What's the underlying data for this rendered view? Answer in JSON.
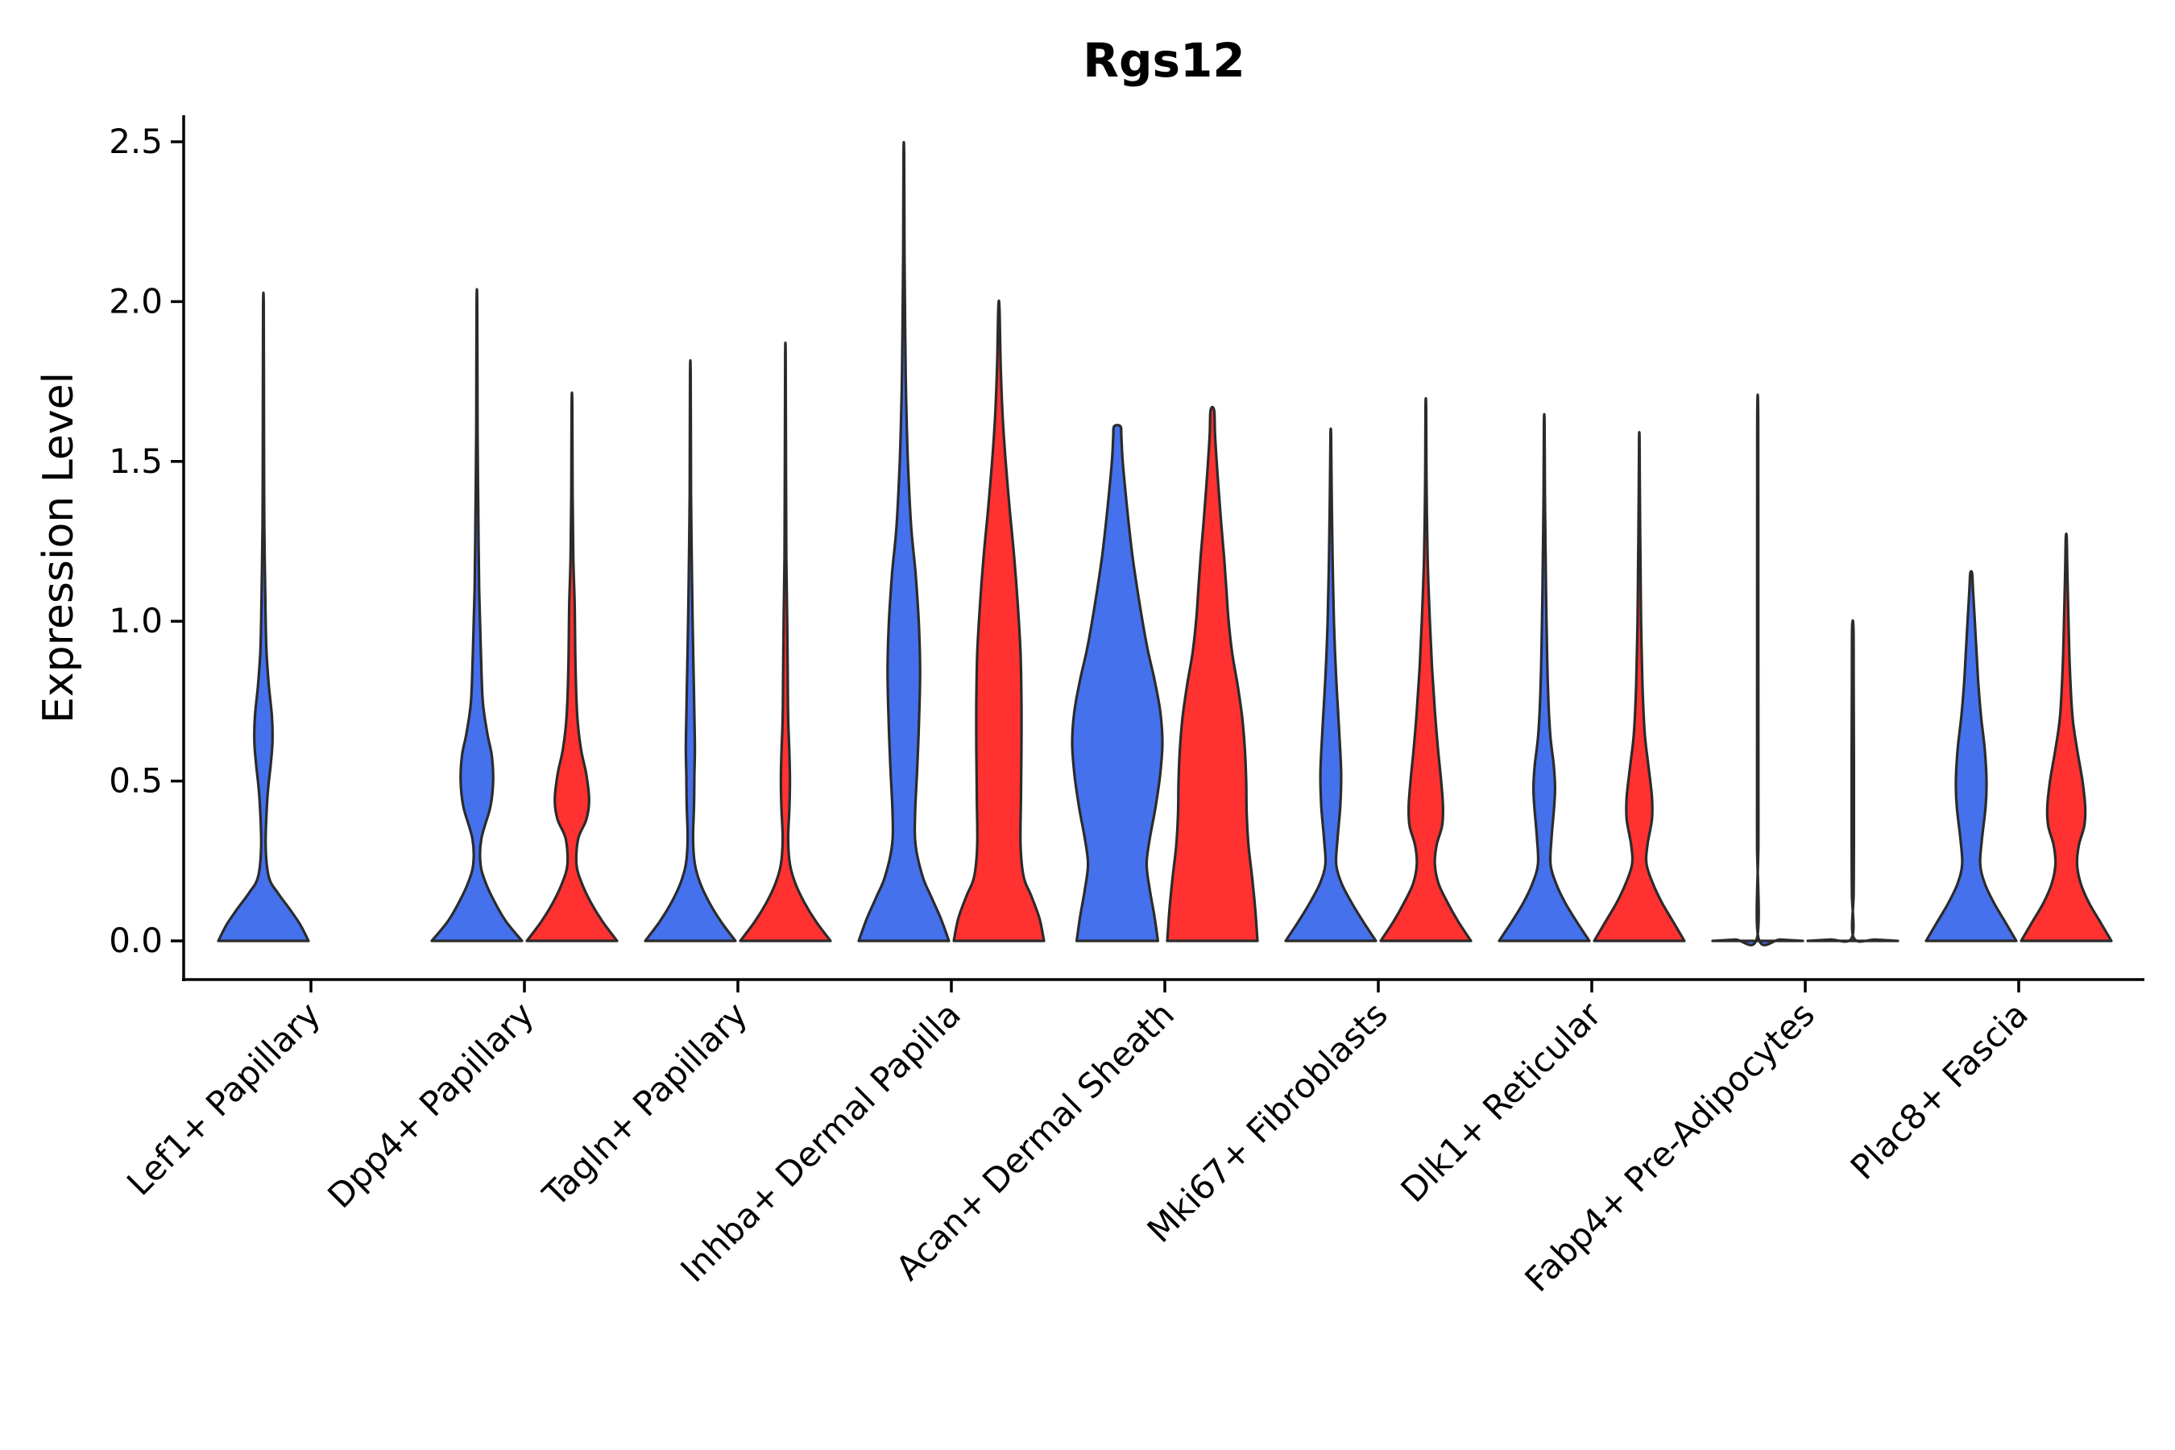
{
  "chart_data": {
    "type": "violin",
    "title": "Rgs12",
    "xlabel": "",
    "ylabel": "Expression Level",
    "ylim": [
      -0.12,
      2.58
    ],
    "yticks": [
      0.0,
      0.5,
      1.0,
      1.5,
      2.0,
      2.5
    ],
    "ytick_labels": [
      "0.0",
      "0.5",
      "1.0",
      "1.5",
      "2.0",
      "2.5"
    ],
    "grid": false,
    "legend": "none",
    "series_colors": {
      "group1": "#4571ED",
      "group2": "#FF3131"
    },
    "categories": [
      "Lef1+ Papillary",
      "Dpp4+ Papillary",
      "Tagln+ Papillary",
      "Inhba+ Dermal Papilla",
      "Acan+ Dermal Sheath",
      "Mki67+ Fibroblasts",
      "Dlk1+ Reticular",
      "Fabp4+ Pre-Adipocytes",
      "Plac8+ Fascia"
    ],
    "violins": [
      {
        "category": "Lef1+ Papillary",
        "group": "group1",
        "color": "#4571ED",
        "max": 1.98,
        "profile": [
          [
            0,
            1.0
          ],
          [
            0.05,
            0.82
          ],
          [
            0.1,
            0.58
          ],
          [
            0.15,
            0.32
          ],
          [
            0.2,
            0.12
          ],
          [
            0.3,
            0.05
          ],
          [
            0.45,
            0.09
          ],
          [
            0.55,
            0.16
          ],
          [
            0.62,
            0.2
          ],
          [
            0.7,
            0.19
          ],
          [
            0.8,
            0.12
          ],
          [
            0.9,
            0.07
          ],
          [
            1.0,
            0.05
          ],
          [
            1.3,
            0.02
          ],
          [
            1.6,
            0.012
          ],
          [
            1.98,
            0.008
          ]
        ]
      },
      {
        "category": "Dpp4+ Papillary",
        "group": "group1",
        "color": "#4571ED",
        "max": 1.99,
        "profile": [
          [
            0,
            1.0
          ],
          [
            0.06,
            0.65
          ],
          [
            0.12,
            0.4
          ],
          [
            0.18,
            0.2
          ],
          [
            0.24,
            0.08
          ],
          [
            0.32,
            0.1
          ],
          [
            0.42,
            0.3
          ],
          [
            0.5,
            0.36
          ],
          [
            0.58,
            0.33
          ],
          [
            0.65,
            0.23
          ],
          [
            0.75,
            0.13
          ],
          [
            0.9,
            0.09
          ],
          [
            1.1,
            0.05
          ],
          [
            1.35,
            0.03
          ],
          [
            1.6,
            0.015
          ],
          [
            1.99,
            0.008
          ]
        ]
      },
      {
        "category": "Dpp4+ Papillary",
        "group": "group2",
        "color": "#FF3131",
        "max": 1.68,
        "profile": [
          [
            0,
            1.0
          ],
          [
            0.06,
            0.68
          ],
          [
            0.12,
            0.42
          ],
          [
            0.18,
            0.22
          ],
          [
            0.24,
            0.1
          ],
          [
            0.32,
            0.14
          ],
          [
            0.38,
            0.32
          ],
          [
            0.44,
            0.38
          ],
          [
            0.52,
            0.32
          ],
          [
            0.6,
            0.2
          ],
          [
            0.7,
            0.12
          ],
          [
            0.85,
            0.08
          ],
          [
            1.05,
            0.06
          ],
          [
            1.2,
            0.03
          ],
          [
            1.4,
            0.015
          ],
          [
            1.68,
            0.008
          ]
        ]
      },
      {
        "category": "Tagln+ Papillary",
        "group": "group1",
        "color": "#4571ED",
        "max": 1.77,
        "profile": [
          [
            0,
            1.0
          ],
          [
            0.06,
            0.68
          ],
          [
            0.12,
            0.42
          ],
          [
            0.18,
            0.22
          ],
          [
            0.24,
            0.1
          ],
          [
            0.32,
            0.06
          ],
          [
            0.42,
            0.08
          ],
          [
            0.52,
            0.09
          ],
          [
            0.6,
            0.1
          ],
          [
            0.7,
            0.09
          ],
          [
            0.85,
            0.07
          ],
          [
            1.0,
            0.05
          ],
          [
            1.2,
            0.03
          ],
          [
            1.4,
            0.015
          ],
          [
            1.77,
            0.008
          ]
        ]
      },
      {
        "category": "Tagln+ Papillary",
        "group": "group2",
        "color": "#FF3131",
        "max": 1.83,
        "profile": [
          [
            0,
            1.0
          ],
          [
            0.06,
            0.68
          ],
          [
            0.12,
            0.42
          ],
          [
            0.18,
            0.22
          ],
          [
            0.24,
            0.1
          ],
          [
            0.32,
            0.06
          ],
          [
            0.42,
            0.09
          ],
          [
            0.5,
            0.1
          ],
          [
            0.58,
            0.09
          ],
          [
            0.7,
            0.06
          ],
          [
            0.85,
            0.05
          ],
          [
            1.0,
            0.04
          ],
          [
            1.2,
            0.02
          ],
          [
            1.5,
            0.012
          ],
          [
            1.83,
            0.006
          ]
        ]
      },
      {
        "category": "Inhba+ Dermal Papilla",
        "group": "group1",
        "color": "#4571ED",
        "max": 2.46,
        "profile": [
          [
            0,
            1.0
          ],
          [
            0.07,
            0.82
          ],
          [
            0.14,
            0.6
          ],
          [
            0.2,
            0.42
          ],
          [
            0.3,
            0.26
          ],
          [
            0.4,
            0.25
          ],
          [
            0.55,
            0.3
          ],
          [
            0.7,
            0.34
          ],
          [
            0.85,
            0.36
          ],
          [
            1.0,
            0.33
          ],
          [
            1.15,
            0.26
          ],
          [
            1.3,
            0.16
          ],
          [
            1.5,
            0.09
          ],
          [
            1.7,
            0.05
          ],
          [
            1.9,
            0.03
          ],
          [
            2.15,
            0.015
          ],
          [
            2.46,
            0.008
          ]
        ]
      },
      {
        "category": "Inhba+ Dermal Papilla",
        "group": "group2",
        "color": "#FF3131",
        "max": 1.98,
        "profile": [
          [
            0,
            1.0
          ],
          [
            0.07,
            0.9
          ],
          [
            0.14,
            0.72
          ],
          [
            0.2,
            0.55
          ],
          [
            0.3,
            0.48
          ],
          [
            0.45,
            0.49
          ],
          [
            0.6,
            0.5
          ],
          [
            0.75,
            0.5
          ],
          [
            0.9,
            0.48
          ],
          [
            1.05,
            0.42
          ],
          [
            1.2,
            0.34
          ],
          [
            1.35,
            0.24
          ],
          [
            1.5,
            0.15
          ],
          [
            1.65,
            0.08
          ],
          [
            1.8,
            0.04
          ],
          [
            1.98,
            0.012
          ]
        ]
      },
      {
        "category": "Acan+ Dermal Sheath",
        "group": "group1",
        "color": "#4571ED",
        "max": 1.61,
        "profile": [
          [
            0,
            0.9
          ],
          [
            0.08,
            0.82
          ],
          [
            0.16,
            0.72
          ],
          [
            0.24,
            0.65
          ],
          [
            0.32,
            0.72
          ],
          [
            0.42,
            0.85
          ],
          [
            0.52,
            0.95
          ],
          [
            0.62,
            1.0
          ],
          [
            0.72,
            0.95
          ],
          [
            0.82,
            0.82
          ],
          [
            0.92,
            0.66
          ],
          [
            1.05,
            0.5
          ],
          [
            1.2,
            0.34
          ],
          [
            1.35,
            0.22
          ],
          [
            1.5,
            0.12
          ],
          [
            1.58,
            0.09
          ],
          [
            1.61,
            0.07
          ]
        ]
      },
      {
        "category": "Acan+ Dermal Sheath",
        "group": "group2",
        "color": "#FF3131",
        "max": 1.66,
        "profile": [
          [
            0,
            1.0
          ],
          [
            0.1,
            0.95
          ],
          [
            0.2,
            0.88
          ],
          [
            0.3,
            0.8
          ],
          [
            0.4,
            0.76
          ],
          [
            0.5,
            0.75
          ],
          [
            0.6,
            0.72
          ],
          [
            0.7,
            0.66
          ],
          [
            0.8,
            0.56
          ],
          [
            0.9,
            0.44
          ],
          [
            1.0,
            0.36
          ],
          [
            1.1,
            0.31
          ],
          [
            1.2,
            0.26
          ],
          [
            1.3,
            0.2
          ],
          [
            1.45,
            0.12
          ],
          [
            1.58,
            0.06
          ],
          [
            1.66,
            0.04
          ]
        ]
      },
      {
        "category": "Mki67+ Fibroblasts",
        "group": "group1",
        "color": "#4571ED",
        "max": 1.58,
        "profile": [
          [
            0,
            1.0
          ],
          [
            0.06,
            0.72
          ],
          [
            0.12,
            0.46
          ],
          [
            0.18,
            0.24
          ],
          [
            0.24,
            0.12
          ],
          [
            0.32,
            0.15
          ],
          [
            0.42,
            0.21
          ],
          [
            0.52,
            0.23
          ],
          [
            0.62,
            0.2
          ],
          [
            0.72,
            0.16
          ],
          [
            0.85,
            0.11
          ],
          [
            1.0,
            0.07
          ],
          [
            1.2,
            0.04
          ],
          [
            1.4,
            0.02
          ],
          [
            1.58,
            0.008
          ]
        ]
      },
      {
        "category": "Mki67+ Fibroblasts",
        "group": "group2",
        "color": "#FF3131",
        "max": 1.67,
        "profile": [
          [
            0,
            1.0
          ],
          [
            0.06,
            0.72
          ],
          [
            0.12,
            0.48
          ],
          [
            0.18,
            0.28
          ],
          [
            0.24,
            0.2
          ],
          [
            0.3,
            0.24
          ],
          [
            0.36,
            0.36
          ],
          [
            0.42,
            0.38
          ],
          [
            0.5,
            0.34
          ],
          [
            0.6,
            0.27
          ],
          [
            0.72,
            0.2
          ],
          [
            0.85,
            0.14
          ],
          [
            1.0,
            0.09
          ],
          [
            1.2,
            0.04
          ],
          [
            1.45,
            0.015
          ],
          [
            1.67,
            0.008
          ]
        ]
      },
      {
        "category": "Dlk1+ Reticular",
        "group": "group1",
        "color": "#4571ED",
        "max": 1.62,
        "profile": [
          [
            0,
            1.0
          ],
          [
            0.06,
            0.72
          ],
          [
            0.12,
            0.46
          ],
          [
            0.18,
            0.26
          ],
          [
            0.24,
            0.14
          ],
          [
            0.32,
            0.16
          ],
          [
            0.42,
            0.22
          ],
          [
            0.48,
            0.24
          ],
          [
            0.55,
            0.21
          ],
          [
            0.65,
            0.13
          ],
          [
            0.8,
            0.08
          ],
          [
            1.0,
            0.05
          ],
          [
            1.2,
            0.03
          ],
          [
            1.4,
            0.015
          ],
          [
            1.62,
            0.008
          ]
        ]
      },
      {
        "category": "Dlk1+ Reticular",
        "group": "group2",
        "color": "#FF3131",
        "max": 1.57,
        "profile": [
          [
            0,
            1.0
          ],
          [
            0.06,
            0.75
          ],
          [
            0.12,
            0.5
          ],
          [
            0.18,
            0.3
          ],
          [
            0.24,
            0.16
          ],
          [
            0.3,
            0.18
          ],
          [
            0.38,
            0.28
          ],
          [
            0.45,
            0.28
          ],
          [
            0.55,
            0.2
          ],
          [
            0.65,
            0.12
          ],
          [
            0.8,
            0.07
          ],
          [
            1.0,
            0.04
          ],
          [
            1.2,
            0.025
          ],
          [
            1.4,
            0.012
          ],
          [
            1.57,
            0.006
          ]
        ]
      },
      {
        "category": "Fabp4+ Pre-Adipocytes",
        "group": "group1",
        "color": "#4571ED",
        "max": 1.63,
        "profile": [
          [
            0,
            1.0
          ],
          [
            0.004,
            0.5
          ],
          [
            0.01,
            0.015
          ],
          [
            0.3,
            0.015
          ],
          [
            0.5,
            0.015
          ],
          [
            1.0,
            0.012
          ],
          [
            1.63,
            0.01
          ]
        ]
      },
      {
        "category": "Fabp4+ Pre-Adipocytes",
        "group": "group2",
        "color": "#FF3131",
        "max": 0.98,
        "profile": [
          [
            0,
            1.0
          ],
          [
            0.004,
            0.5
          ],
          [
            0.01,
            0.02
          ],
          [
            0.15,
            0.02
          ],
          [
            0.3,
            0.025
          ],
          [
            0.58,
            0.025
          ],
          [
            0.8,
            0.02
          ],
          [
            0.98,
            0.015
          ]
        ]
      },
      {
        "category": "Plac8+ Fascia",
        "group": "group1",
        "color": "#4571ED",
        "max": 1.15,
        "profile": [
          [
            0,
            1.0
          ],
          [
            0.06,
            0.75
          ],
          [
            0.12,
            0.5
          ],
          [
            0.18,
            0.3
          ],
          [
            0.24,
            0.2
          ],
          [
            0.32,
            0.24
          ],
          [
            0.42,
            0.32
          ],
          [
            0.5,
            0.34
          ],
          [
            0.6,
            0.3
          ],
          [
            0.7,
            0.22
          ],
          [
            0.8,
            0.16
          ],
          [
            0.9,
            0.12
          ],
          [
            1.0,
            0.08
          ],
          [
            1.1,
            0.04
          ],
          [
            1.15,
            0.02
          ]
        ]
      },
      {
        "category": "Plac8+ Fascia",
        "group": "group2",
        "color": "#FF3131",
        "max": 1.26,
        "profile": [
          [
            0,
            1.0
          ],
          [
            0.06,
            0.75
          ],
          [
            0.12,
            0.5
          ],
          [
            0.18,
            0.32
          ],
          [
            0.24,
            0.24
          ],
          [
            0.3,
            0.28
          ],
          [
            0.36,
            0.4
          ],
          [
            0.42,
            0.42
          ],
          [
            0.5,
            0.36
          ],
          [
            0.6,
            0.24
          ],
          [
            0.7,
            0.14
          ],
          [
            0.85,
            0.08
          ],
          [
            1.0,
            0.05
          ],
          [
            1.15,
            0.025
          ],
          [
            1.26,
            0.01
          ]
        ]
      }
    ]
  }
}
